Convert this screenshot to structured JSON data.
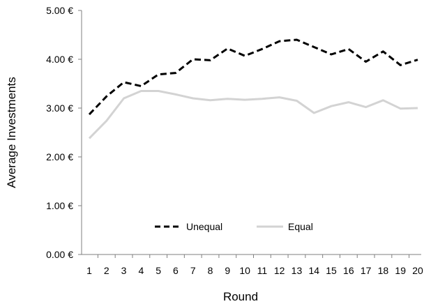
{
  "chart_data": {
    "type": "line",
    "title": "",
    "xlabel": "Round",
    "ylabel": "Average Investments",
    "x": [
      1,
      2,
      3,
      4,
      5,
      6,
      7,
      8,
      9,
      10,
      11,
      12,
      13,
      14,
      15,
      16,
      17,
      18,
      19,
      20
    ],
    "x_tick_labels": [
      "1",
      "2",
      "3",
      "4",
      "5",
      "6",
      "7",
      "8",
      "9",
      "10",
      "11",
      "12",
      "13",
      "14",
      "15",
      "16",
      "17",
      "18",
      "19",
      "20"
    ],
    "ylim": [
      0,
      5
    ],
    "y_ticks": [
      0,
      1,
      2,
      3,
      4,
      5
    ],
    "y_tick_labels": [
      "0.00 €",
      "1.00 €",
      "2.00 €",
      "3.00 €",
      "4.00 €",
      "5.00 €"
    ],
    "grid": false,
    "legend_position": "bottom-center inside plot",
    "series": [
      {
        "name": "Unequal",
        "style": "dashed",
        "color": "#000000",
        "values": [
          2.87,
          3.24,
          3.53,
          3.45,
          3.69,
          3.72,
          4.0,
          3.98,
          4.22,
          4.07,
          4.21,
          4.37,
          4.4,
          4.25,
          4.1,
          4.21,
          3.95,
          4.16,
          3.88,
          3.99
        ]
      },
      {
        "name": "Equal",
        "style": "solid",
        "color": "#d3d3d3",
        "values": [
          2.38,
          2.74,
          3.2,
          3.35,
          3.35,
          3.28,
          3.2,
          3.16,
          3.19,
          3.17,
          3.19,
          3.22,
          3.15,
          2.9,
          3.04,
          3.12,
          3.02,
          3.16,
          2.99,
          3.0
        ]
      }
    ]
  }
}
